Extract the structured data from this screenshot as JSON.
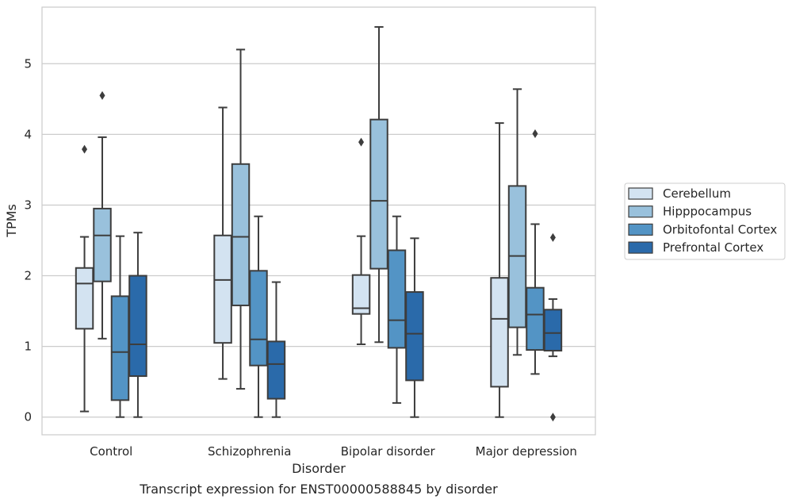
{
  "caption": "Transcript expression for ENST00000588845 by disorder",
  "chart_data": {
    "type": "boxplot",
    "xlabel": "Disorder",
    "ylabel": "TPMs",
    "categories": [
      "Control",
      "Schizophrenia",
      "Bipolar disorder",
      "Major depression"
    ],
    "ylim": [
      -0.25,
      5.8
    ],
    "yticks": [
      "0",
      "1",
      "2",
      "3",
      "4",
      "5"
    ],
    "grid": true,
    "legend_position": "right",
    "series": [
      {
        "name": "Cerebellum",
        "color": "#d3e3f1",
        "boxes": [
          {
            "whislo": 0.08,
            "q1": 1.25,
            "med": 1.89,
            "q3": 2.11,
            "whishi": 2.55,
            "fliers": [
              3.79
            ]
          },
          {
            "whislo": 0.54,
            "q1": 1.05,
            "med": 1.94,
            "q3": 2.57,
            "whishi": 4.38,
            "fliers": []
          },
          {
            "whislo": 1.03,
            "q1": 1.46,
            "med": 1.54,
            "q3": 2.01,
            "whishi": 2.56,
            "fliers": [
              3.89
            ]
          },
          {
            "whislo": 0.0,
            "q1": 0.43,
            "med": 1.39,
            "q3": 1.97,
            "whishi": 4.16,
            "fliers": []
          }
        ]
      },
      {
        "name": "Hipppocampus",
        "color": "#99c1dc",
        "boxes": [
          {
            "whislo": 1.11,
            "q1": 1.92,
            "med": 2.57,
            "q3": 2.95,
            "whishi": 3.96,
            "fliers": [
              4.55
            ]
          },
          {
            "whislo": 0.4,
            "q1": 1.58,
            "med": 2.55,
            "q3": 3.58,
            "whishi": 5.2,
            "fliers": []
          },
          {
            "whislo": 1.06,
            "q1": 2.1,
            "med": 3.06,
            "q3": 4.21,
            "whishi": 5.52,
            "fliers": []
          },
          {
            "whislo": 0.88,
            "q1": 1.27,
            "med": 2.28,
            "q3": 3.27,
            "whishi": 4.64,
            "fliers": []
          }
        ]
      },
      {
        "name": "Orbitofontal Cortex",
        "color": "#5394c5",
        "boxes": [
          {
            "whislo": 0.0,
            "q1": 0.24,
            "med": 0.92,
            "q3": 1.71,
            "whishi": 2.56,
            "fliers": []
          },
          {
            "whislo": 0.0,
            "q1": 0.73,
            "med": 1.1,
            "q3": 2.07,
            "whishi": 2.84,
            "fliers": []
          },
          {
            "whislo": 0.2,
            "q1": 0.98,
            "med": 1.37,
            "q3": 2.36,
            "whishi": 2.84,
            "fliers": []
          },
          {
            "whislo": 0.61,
            "q1": 0.95,
            "med": 1.45,
            "q3": 1.83,
            "whishi": 2.73,
            "fliers": [
              4.01
            ]
          }
        ]
      },
      {
        "name": "Prefrontal Cortex",
        "color": "#2a6aaa",
        "boxes": [
          {
            "whislo": 0.0,
            "q1": 0.58,
            "med": 1.03,
            "q3": 2.0,
            "whishi": 2.61,
            "fliers": []
          },
          {
            "whislo": 0.0,
            "q1": 0.26,
            "med": 0.75,
            "q3": 1.07,
            "whishi": 1.91,
            "fliers": []
          },
          {
            "whislo": 0.0,
            "q1": 0.52,
            "med": 1.18,
            "q3": 1.77,
            "whishi": 2.53,
            "fliers": []
          },
          {
            "whislo": 0.86,
            "q1": 0.94,
            "med": 1.19,
            "q3": 1.52,
            "whishi": 1.67,
            "fliers": [
              2.54,
              0.0
            ]
          }
        ]
      }
    ]
  }
}
